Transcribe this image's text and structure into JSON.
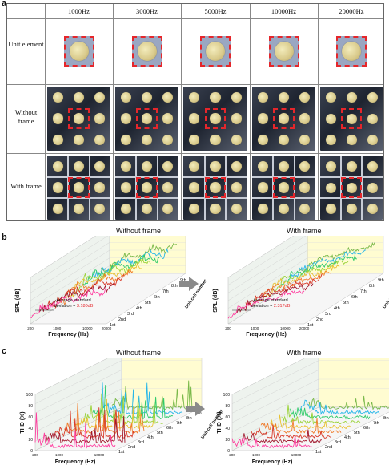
{
  "panel_a": {
    "letter": "a",
    "columns": [
      "1000Hz",
      "3000Hz",
      "5000Hz",
      "10000Hz",
      "20000Hz"
    ],
    "rows": [
      "Unit element",
      "Without frame",
      "With frame"
    ]
  },
  "panel_b": {
    "letter": "b",
    "titles": [
      "Without frame",
      "With frame"
    ],
    "ylabel": "SPL (dB)",
    "xlabel": "Frequency (Hz)",
    "xticks": [
      "200",
      "1000",
      "10000",
      "20000"
    ],
    "cells": [
      "1st",
      "2nd",
      "3rd",
      "4th",
      "5th",
      "6th",
      "7th",
      "8th",
      "9th"
    ],
    "depth_label": "Unit cell number",
    "annot_prefix": "Average standard deviation = ",
    "annots": [
      "3.180dB",
      "2.317dB"
    ]
  },
  "panel_c": {
    "letter": "c",
    "titles": [
      "Without frame",
      "With frame"
    ],
    "ylabel": "THD (%)",
    "xlabel": "Frequency (Hz)",
    "yticks": [
      "0",
      "20",
      "40",
      "60",
      "80",
      "100"
    ],
    "xticks": [
      "200",
      "1000",
      "10000"
    ],
    "cells": [
      "1st",
      "2nd",
      "3rd",
      "4th",
      "5th",
      "6th",
      "7th",
      "8th",
      "9th"
    ],
    "depth_label": "Unit cell number"
  },
  "colors": {
    "series": [
      "#ff3fa0",
      "#a1182d",
      "#d83c2b",
      "#f07b2a",
      "#e9c232",
      "#9bd33a",
      "#2fcb6a",
      "#29b7e8",
      "#7ab94a"
    ],
    "highlight": "#e5262b",
    "panel_fill": "#fffcd1",
    "arrow": "#8a8a8a"
  }
}
